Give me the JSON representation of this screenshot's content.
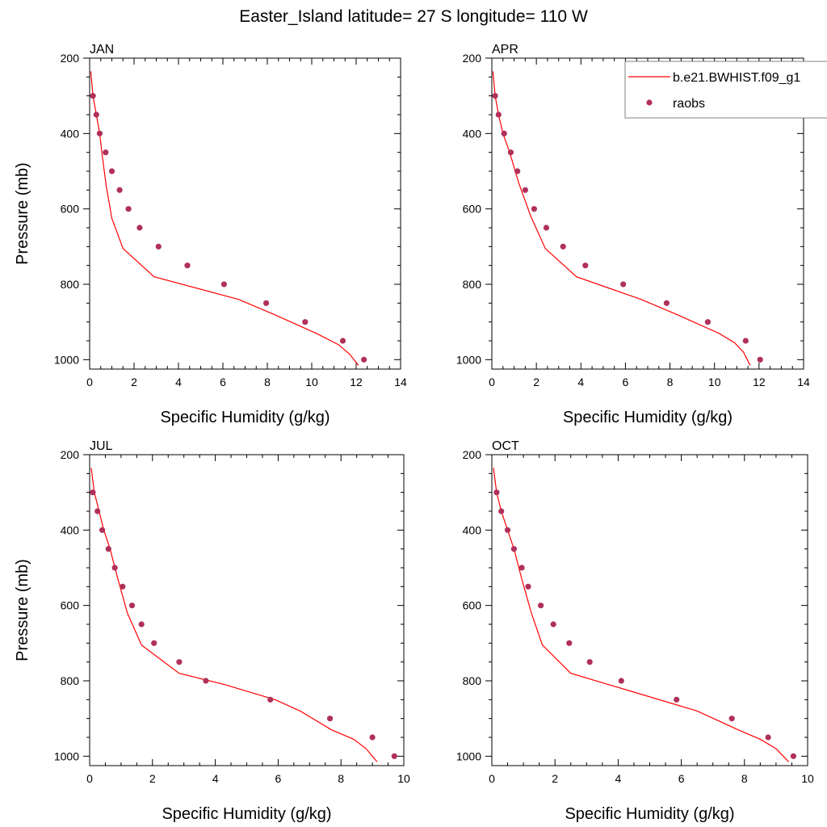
{
  "title": "Easter_Island  latitude= 27 S longitude= 110 W",
  "colors": {
    "model": "#ff0000",
    "obs": "#b0305a"
  },
  "legend": {
    "placement": "top-right",
    "model_label": "b.e21.BWHIST.f09_g1",
    "obs_label": "raobs"
  },
  "chart_data": [
    {
      "type": "line",
      "panel": "JAN",
      "xlabel": "Specific Humidity (g/kg)",
      "ylabel": "Pressure (mb)",
      "xlim": [
        0,
        14
      ],
      "ylim": [
        200,
        1025
      ],
      "y_inverted": true,
      "xticks": [
        0,
        2,
        4,
        6,
        8,
        10,
        12,
        14
      ],
      "yticks": [
        200,
        400,
        600,
        800,
        1000
      ],
      "series": [
        {
          "name": "b.e21.BWHIST.f09_g1",
          "kind": "line",
          "x": [
            0.05,
            0.15,
            0.3,
            0.45,
            0.55,
            0.75,
            1.0,
            1.5,
            2.9,
            6.7,
            8.3,
            10.2,
            11.2,
            11.7,
            12.1
          ],
          "y": [
            235,
            300,
            350,
            400,
            450,
            540,
            625,
            705,
            780,
            840,
            880,
            930,
            960,
            985,
            1015
          ]
        },
        {
          "name": "raobs",
          "kind": "scatter",
          "x": [
            0.15,
            0.3,
            0.45,
            0.72,
            1.0,
            1.35,
            1.75,
            2.25,
            3.1,
            4.4,
            6.05,
            7.95,
            9.7,
            11.4,
            12.35
          ],
          "y": [
            300,
            350,
            400,
            450,
            500,
            550,
            600,
            650,
            700,
            750,
            800,
            850,
            900,
            950,
            1000
          ]
        }
      ]
    },
    {
      "type": "line",
      "panel": "APR",
      "xlabel": "Specific Humidity (g/kg)",
      "ylabel": "",
      "xlim": [
        0,
        14
      ],
      "ylim": [
        200,
        1025
      ],
      "y_inverted": true,
      "xticks": [
        0,
        2,
        4,
        6,
        8,
        10,
        12,
        14
      ],
      "yticks": [
        200,
        400,
        600,
        800,
        1000
      ],
      "series": [
        {
          "name": "b.e21.BWHIST.f09_g1",
          "kind": "line",
          "x": [
            0.05,
            0.15,
            0.3,
            0.5,
            0.8,
            1.2,
            1.75,
            2.4,
            3.8,
            6.7,
            8.3,
            10.2,
            10.9,
            11.3,
            11.6
          ],
          "y": [
            235,
            300,
            350,
            400,
            450,
            530,
            620,
            705,
            780,
            840,
            880,
            930,
            955,
            980,
            1015
          ]
        },
        {
          "name": "raobs",
          "kind": "scatter",
          "x": [
            0.15,
            0.3,
            0.55,
            0.85,
            1.15,
            1.5,
            1.9,
            2.45,
            3.2,
            4.2,
            5.9,
            7.85,
            9.7,
            11.4,
            12.05
          ],
          "y": [
            300,
            350,
            400,
            450,
            500,
            550,
            600,
            650,
            700,
            750,
            800,
            850,
            900,
            950,
            1000
          ]
        }
      ]
    },
    {
      "type": "line",
      "panel": "JUL",
      "xlabel": "Specific Humidity (g/kg)",
      "ylabel": "Pressure (mb)",
      "xlim": [
        0,
        10
      ],
      "ylim": [
        200,
        1025
      ],
      "y_inverted": true,
      "xticks": [
        0,
        2,
        4,
        6,
        8,
        10
      ],
      "yticks": [
        200,
        400,
        600,
        800,
        1000
      ],
      "series": [
        {
          "name": "b.e21.BWHIST.f09_g1",
          "kind": "line",
          "x": [
            0.05,
            0.15,
            0.3,
            0.45,
            0.65,
            0.9,
            1.2,
            1.65,
            2.85,
            4.3,
            5.9,
            6.7,
            7.7,
            8.4,
            8.8,
            9.15
          ],
          "y": [
            235,
            300,
            350,
            400,
            450,
            530,
            620,
            705,
            780,
            810,
            850,
            880,
            930,
            955,
            980,
            1015
          ]
        },
        {
          "name": "raobs",
          "kind": "scatter",
          "x": [
            0.1,
            0.25,
            0.4,
            0.6,
            0.8,
            1.05,
            1.35,
            1.65,
            2.05,
            2.85,
            3.7,
            5.75,
            7.65,
            9.0,
            9.7
          ],
          "y": [
            300,
            350,
            400,
            450,
            500,
            550,
            600,
            650,
            700,
            750,
            800,
            850,
            900,
            950,
            1000
          ]
        }
      ]
    },
    {
      "type": "line",
      "panel": "OCT",
      "xlabel": "Specific Humidity (g/kg)",
      "ylabel": "",
      "xlim": [
        0,
        10
      ],
      "ylim": [
        200,
        1025
      ],
      "y_inverted": true,
      "xticks": [
        0,
        2,
        4,
        6,
        8,
        10
      ],
      "yticks": [
        200,
        400,
        600,
        800,
        1000
      ],
      "series": [
        {
          "name": "b.e21.BWHIST.f09_g1",
          "kind": "line",
          "x": [
            0.05,
            0.15,
            0.3,
            0.5,
            0.7,
            0.95,
            1.25,
            1.6,
            2.5,
            4.5,
            6.5,
            7.8,
            8.5,
            9.0,
            9.4
          ],
          "y": [
            235,
            300,
            350,
            400,
            450,
            530,
            620,
            705,
            780,
            830,
            880,
            930,
            955,
            980,
            1015
          ]
        },
        {
          "name": "raobs",
          "kind": "scatter",
          "x": [
            0.15,
            0.3,
            0.5,
            0.7,
            0.95,
            1.15,
            1.55,
            1.95,
            2.45,
            3.1,
            4.1,
            5.85,
            7.6,
            8.75,
            9.55
          ],
          "y": [
            300,
            350,
            400,
            450,
            500,
            550,
            600,
            650,
            700,
            750,
            800,
            850,
            900,
            950,
            1000
          ]
        }
      ]
    }
  ]
}
